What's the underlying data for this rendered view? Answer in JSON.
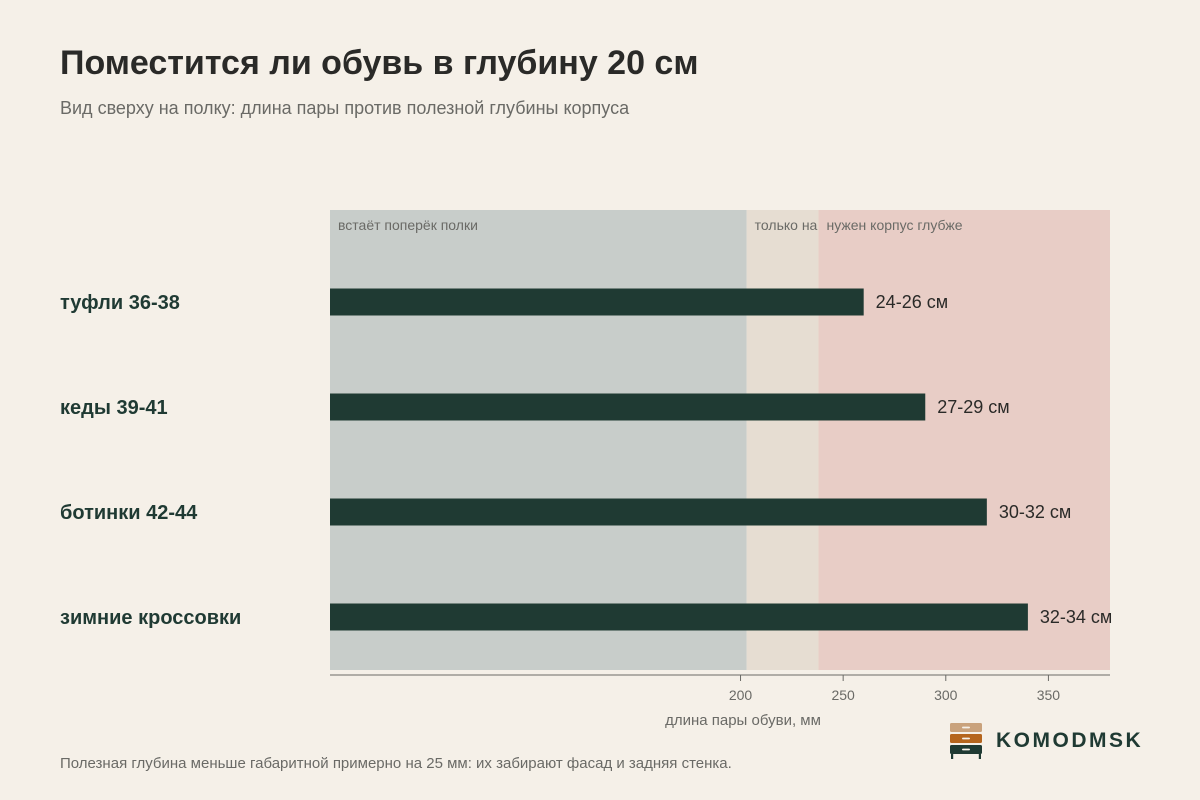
{
  "title": "Поместится ли обувь в глубину 20 см",
  "subtitle": "Вид сверху на полку: длина пары против полезной глубины корпуса",
  "footnote": "Полезная глубина меньше габаритной примерно на 25 мм: их забирают фасад и задняя стенка.",
  "brand": {
    "name": "KOMODMSK"
  },
  "colors": {
    "background": "#f5f0e8",
    "bar": "#1f3a33",
    "zone_fits": "#c8cdca",
    "zone_partial": "#e6ddd2",
    "zone_deeper": "#e8cdc6"
  },
  "chart_data": {
    "type": "bar",
    "orientation": "horizontal",
    "categories": [
      "туфли 36-38",
      "кеды 39-41",
      "ботинки 42-44",
      "зимние кроссовки"
    ],
    "values": [
      260,
      290,
      320,
      340
    ],
    "value_labels": [
      "24-26 см",
      "27-29 см",
      "30-32 см",
      "32-34 см"
    ],
    "xlabel": "длина пары обуви, мм",
    "x_ticks": [
      200,
      250,
      300,
      350
    ],
    "xlim": [
      0,
      380
    ],
    "zones": [
      {
        "label": "встаёт поперёк полки",
        "from": 0,
        "to": 203,
        "color": "#c8cdca"
      },
      {
        "label": "только на",
        "from": 203,
        "to": 238,
        "color": "#e6ddd2"
      },
      {
        "label": "нужен корпус глубже",
        "from": 238,
        "to": 380,
        "color": "#e8cdc6"
      }
    ]
  }
}
